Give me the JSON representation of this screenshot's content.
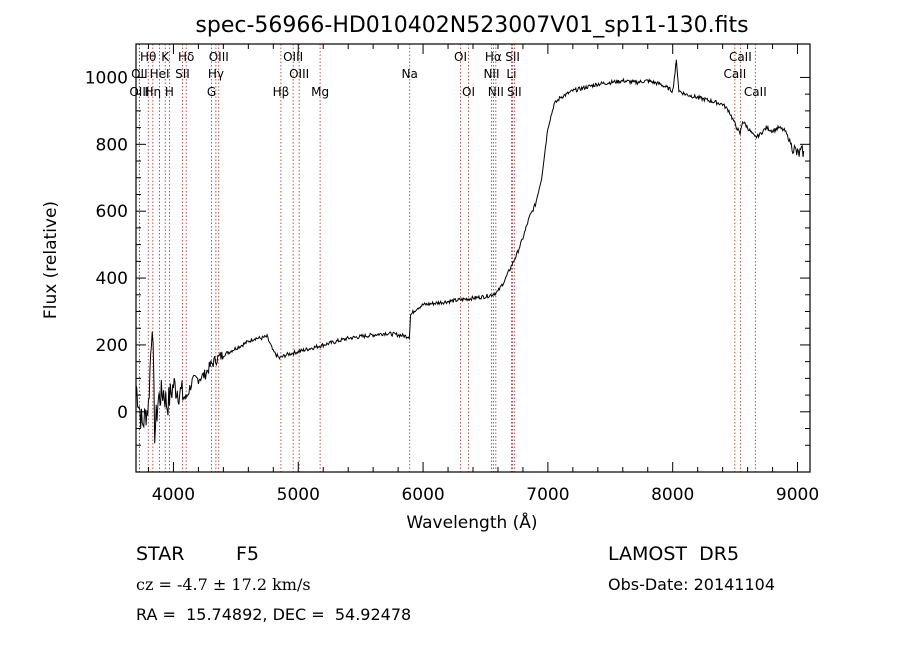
{
  "chart_data": {
    "type": "line",
    "title": "spec-56966-HD010402N523007V01_sp11-130.fits",
    "xlabel": "Wavelength (Å)",
    "ylabel": "Flux (relative)",
    "xlim": [
      3700,
      9100
    ],
    "ylim": [
      -180,
      1100
    ],
    "x_ticks": [
      4000,
      5000,
      6000,
      7000,
      8000,
      9000
    ],
    "x_tick_labels": [
      "4000",
      "5000",
      "6000",
      "7000",
      "8000",
      "9000"
    ],
    "y_ticks": [
      0,
      200,
      400,
      600,
      800,
      1000
    ],
    "y_tick_labels": [
      "0",
      "200",
      "400",
      "600",
      "800",
      "1000"
    ],
    "grid": false,
    "line_color": "#000000",
    "marker_color": "#a52a2a",
    "series": [
      {
        "x": [
          3700,
          3750,
          3800,
          3830,
          3850,
          3880,
          3920,
          3950,
          4000,
          4050,
          4100,
          4150,
          4200,
          4250,
          4300,
          4350,
          4400,
          4450,
          4500,
          4550,
          4600,
          4650,
          4700,
          4750,
          4800,
          4850,
          4900,
          4950,
          5000,
          5100,
          5200,
          5300,
          5400,
          5500,
          5600,
          5700,
          5800,
          5890,
          5900,
          5950,
          6000,
          6100,
          6200,
          6300,
          6400,
          6500,
          6550,
          6600,
          6650,
          6700,
          6750,
          6800,
          6850,
          6900,
          6950,
          7000,
          7050,
          7100,
          7200,
          7300,
          7400,
          7500,
          7600,
          7700,
          7800,
          7900,
          8000,
          8030,
          8050,
          8100,
          8200,
          8300,
          8400,
          8450,
          8500,
          8540,
          8560,
          8600,
          8660,
          8700,
          8750,
          8800,
          8850,
          8900,
          8950,
          9000,
          9050
        ],
        "y": [
          80,
          -40,
          20,
          280,
          -60,
          40,
          60,
          20,
          80,
          60,
          40,
          90,
          100,
          110,
          140,
          160,
          170,
          180,
          190,
          200,
          210,
          220,
          220,
          225,
          180,
          160,
          170,
          175,
          180,
          190,
          200,
          210,
          220,
          225,
          230,
          235,
          230,
          225,
          290,
          310,
          320,
          325,
          330,
          335,
          340,
          345,
          350,
          360,
          390,
          430,
          470,
          520,
          580,
          620,
          700,
          850,
          920,
          940,
          960,
          970,
          980,
          985,
          990,
          985,
          990,
          980,
          960,
          1050,
          960,
          950,
          940,
          930,
          920,
          900,
          860,
          830,
          870,
          850,
          820,
          830,
          850,
          840,
          850,
          840,
          800,
          770,
          780
        ]
      }
    ],
    "spectral_lines": [
      {
        "label": "Hθ",
        "x": 3798,
        "row": 0
      },
      {
        "label": "K",
        "x": 3934,
        "row": 0
      },
      {
        "label": "Hδ",
        "x": 4102,
        "row": 0
      },
      {
        "label": "OIII",
        "x": 4363,
        "row": 0
      },
      {
        "label": "OIII",
        "x": 4959,
        "row": 0
      },
      {
        "label": "OI",
        "x": 6300,
        "row": 0
      },
      {
        "label": "Hα",
        "x": 6563,
        "row": 0
      },
      {
        "label": "SII",
        "x": 6717,
        "row": 0
      },
      {
        "label": "CaII",
        "x": 8542,
        "row": 0
      },
      {
        "label": "OII",
        "x": 3727,
        "row": 1
      },
      {
        "label": "HeI",
        "x": 3889,
        "row": 1
      },
      {
        "label": "SII",
        "x": 4072,
        "row": 1
      },
      {
        "label": "Hγ",
        "x": 4340,
        "row": 1
      },
      {
        "label": "OIII",
        "x": 5007,
        "row": 1
      },
      {
        "label": "Na",
        "x": 5893,
        "row": 1
      },
      {
        "label": "NII",
        "x": 6548,
        "row": 1
      },
      {
        "label": "Li",
        "x": 6708,
        "row": 1
      },
      {
        "label": "CaII",
        "x": 8498,
        "row": 1
      },
      {
        "label": "OIII",
        "x": 3727,
        "row": 2
      },
      {
        "label": "Hη",
        "x": 3835,
        "row": 2
      },
      {
        "label": "H",
        "x": 3968,
        "row": 2
      },
      {
        "label": "G",
        "x": 4305,
        "row": 2
      },
      {
        "label": "Hβ",
        "x": 4861,
        "row": 2
      },
      {
        "label": "Mg",
        "x": 5175,
        "row": 2
      },
      {
        "label": "OI",
        "x": 6364,
        "row": 2
      },
      {
        "label": "NII",
        "x": 6583,
        "row": 2
      },
      {
        "label": "SII",
        "x": 6731,
        "row": 2
      },
      {
        "label": "CaII",
        "x": 8662,
        "row": 2
      }
    ]
  },
  "footer": {
    "object_class": "STAR",
    "subclass": "F5",
    "survey": "LAMOST  DR5",
    "redshift": "cz = -4.7 ± 17.2 km/s",
    "obs_date": "Obs-Date: 20141104",
    "coords": "RA =  15.74892, DEC =  54.92478"
  }
}
